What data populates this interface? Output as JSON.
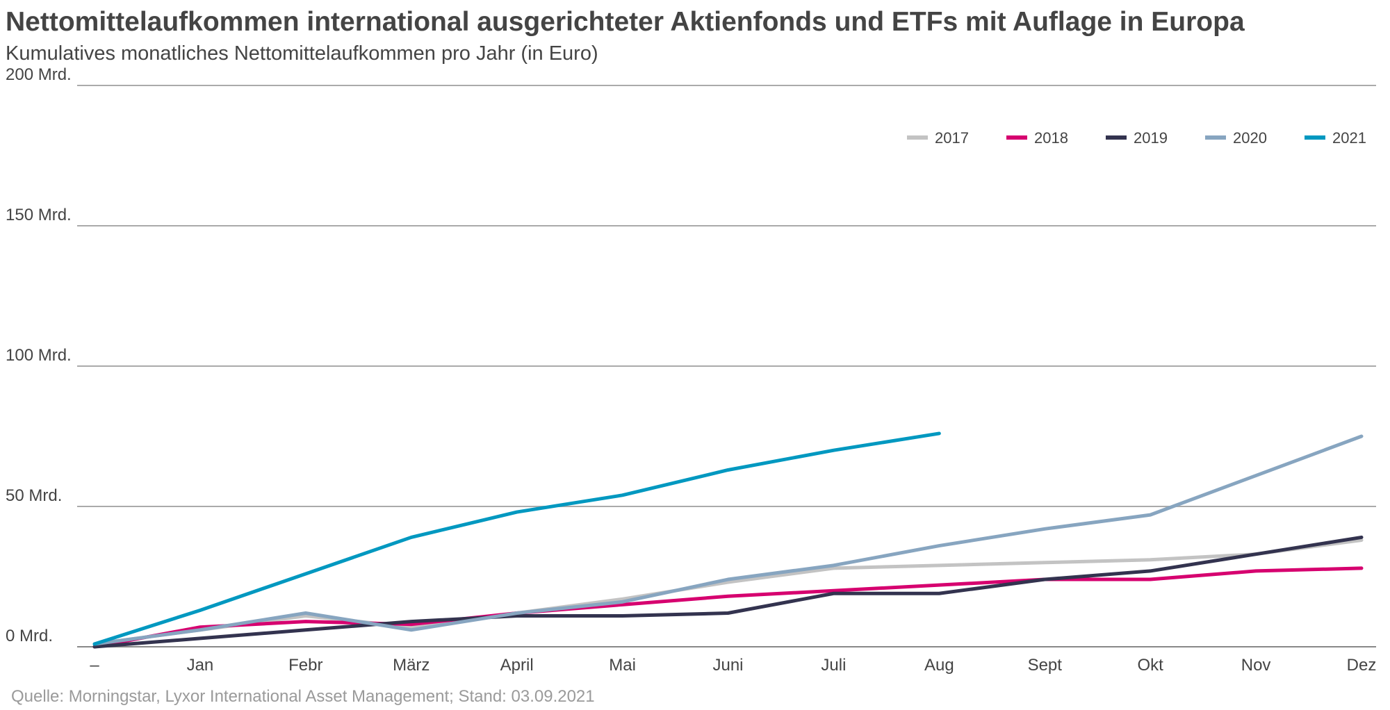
{
  "chart_data": {
    "type": "line",
    "title": "Nettomittelaufkommen international ausgerichteter Aktienfonds und ETFs mit Auflage in Europa",
    "subtitle": "Kumulatives monatliches Nettomittelaufkommen pro Jahr (in Euro)",
    "source": "Quelle: Morningstar, Lyxor International Asset Management; Stand: 03.09.2021",
    "categories": [
      "–",
      "Jan",
      "Febr",
      "März",
      "April",
      "Mai",
      "Juni",
      "Juli",
      "Aug",
      "Sept",
      "Okt",
      "Nov",
      "Dez"
    ],
    "series": [
      {
        "name": "2017",
        "color": "#c3c3c3",
        "values": [
          1,
          6,
          11,
          7,
          12,
          17,
          23,
          28,
          29,
          30,
          31,
          33,
          38
        ]
      },
      {
        "name": "2018",
        "color": "#d6006f",
        "values": [
          0,
          7,
          9,
          8,
          12,
          15,
          18,
          20,
          22,
          24,
          24,
          27,
          28
        ]
      },
      {
        "name": "2019",
        "color": "#33334f",
        "values": [
          0,
          3,
          6,
          9,
          11,
          11,
          12,
          19,
          19,
          24,
          27,
          33,
          39
        ]
      },
      {
        "name": "2020",
        "color": "#87a5c0",
        "values": [
          1,
          6,
          12,
          6,
          12,
          16,
          24,
          29,
          36,
          42,
          47,
          61,
          75
        ]
      },
      {
        "name": "2021",
        "color": "#0098c0",
        "values": [
          1,
          13,
          26,
          39,
          48,
          54,
          63,
          70,
          76,
          null,
          null,
          null,
          null
        ]
      }
    ],
    "ylim": [
      0,
      200
    ],
    "yticks": [
      {
        "value": 0,
        "label": "0 Mrd."
      },
      {
        "value": 50,
        "label": "50 Mrd."
      },
      {
        "value": 100,
        "label": "100 Mrd."
      },
      {
        "value": 150,
        "label": "150 Mrd."
      },
      {
        "value": 200,
        "label": "200 Mrd."
      }
    ],
    "grid": true,
    "legend": "top-right"
  }
}
